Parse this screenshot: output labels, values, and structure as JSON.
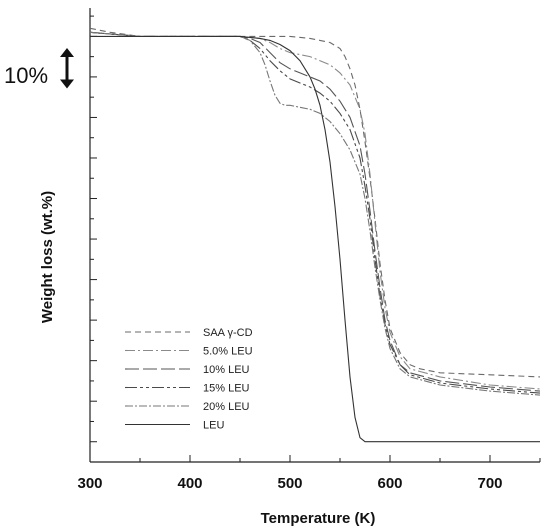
{
  "chart_data": {
    "type": "line",
    "title": "",
    "xlabel": "Temperature (K)",
    "ylabel": "Weight loss (wt.%)",
    "xlim": [
      300,
      750
    ],
    "ylim": [
      -5,
      107
    ],
    "x_ticks": [
      300,
      400,
      500,
      600,
      700
    ],
    "y_axis_tick_labels": false,
    "grid": false,
    "legend_position": "bottom-left",
    "annotation": {
      "text": "10%",
      "meaning": "vertical double arrow spanning 10 wt.%"
    },
    "series": [
      {
        "name": "SAA γ-CD",
        "dash": "6,4",
        "color": "#6a6a6a",
        "x": [
          300,
          310,
          320,
          335,
          350,
          370,
          400,
          450,
          480,
          500,
          520,
          530,
          540,
          550,
          555,
          560,
          565,
          570,
          575,
          580,
          585,
          590,
          595,
          600,
          610,
          620,
          630,
          650,
          700,
          750
        ],
        "y": [
          102,
          101.5,
          101,
          100.5,
          100,
          100,
          100,
          100,
          100,
          100,
          99.5,
          99,
          98.5,
          97,
          95,
          92,
          88,
          82,
          74,
          65,
          55,
          44,
          35,
          28,
          22,
          19,
          18,
          17,
          16.5,
          16
        ]
      },
      {
        "name": "5.0% LEU",
        "dash": "10,3,2,3",
        "color": "#8a8a8a",
        "x": [
          300,
          350,
          400,
          450,
          470,
          480,
          490,
          500,
          510,
          520,
          530,
          540,
          550,
          560,
          570,
          575,
          580,
          585,
          590,
          595,
          600,
          610,
          620,
          650,
          700,
          750
        ],
        "y": [
          101,
          100,
          100,
          100,
          99.5,
          98.5,
          97,
          96,
          95.5,
          95,
          94,
          93,
          91,
          88,
          82,
          76,
          66,
          54,
          42,
          33,
          27,
          21,
          18,
          16,
          14,
          13
        ]
      },
      {
        "name": "10% LEU",
        "dash": "14,4",
        "color": "#555555",
        "x": [
          300,
          350,
          400,
          450,
          460,
          470,
          480,
          490,
          500,
          510,
          520,
          530,
          540,
          550,
          560,
          570,
          575,
          580,
          585,
          590,
          595,
          600,
          610,
          620,
          650,
          700,
          750
        ],
        "y": [
          101,
          100,
          100,
          100,
          99.5,
          98.5,
          96,
          93.5,
          92,
          91,
          90,
          89,
          87,
          84,
          80,
          73,
          66,
          57,
          47,
          38,
          30,
          25,
          19,
          17,
          15,
          13.5,
          12.5
        ]
      },
      {
        "name": "15% LEU",
        "dash": "12,3,3,3,3,3",
        "color": "#4a4a4a",
        "x": [
          300,
          350,
          400,
          450,
          460,
          470,
          480,
          490,
          500,
          510,
          520,
          530,
          540,
          550,
          560,
          570,
          575,
          580,
          585,
          590,
          595,
          600,
          610,
          620,
          650,
          700,
          750
        ],
        "y": [
          101,
          100,
          100,
          100,
          99,
          97,
          94,
          91.5,
          89.5,
          88.5,
          87.5,
          86,
          84,
          81,
          77,
          70,
          63,
          55,
          45,
          36,
          29,
          24,
          19,
          16.5,
          14.5,
          13,
          12
        ]
      },
      {
        "name": "20% LEU",
        "dash": "8,2,2,2",
        "color": "#777777",
        "x": [
          300,
          350,
          400,
          450,
          460,
          470,
          475,
          480,
          485,
          490,
          495,
          500,
          510,
          520,
          530,
          540,
          550,
          560,
          570,
          575,
          580,
          585,
          590,
          595,
          600,
          610,
          620,
          650,
          700,
          750
        ],
        "y": [
          101,
          100,
          100,
          100,
          99,
          96,
          93,
          89,
          85.5,
          83.5,
          83,
          83,
          82.5,
          82,
          81,
          79,
          76,
          72,
          66,
          60,
          52,
          43,
          35,
          28,
          23,
          18,
          16,
          14,
          12.5,
          11.5
        ]
      },
      {
        "name": "LEU",
        "dash": "",
        "color": "#333333",
        "x": [
          300,
          350,
          400,
          450,
          470,
          480,
          490,
          500,
          510,
          520,
          525,
          530,
          535,
          540,
          545,
          550,
          555,
          560,
          565,
          570,
          575,
          600,
          650,
          700,
          750
        ],
        "y": [
          100,
          100,
          100,
          100,
          99.5,
          99,
          98,
          96.5,
          94,
          90,
          87,
          83,
          77,
          69,
          58,
          45,
          30,
          16,
          6,
          1,
          0,
          0,
          0,
          0,
          0
        ]
      }
    ]
  }
}
